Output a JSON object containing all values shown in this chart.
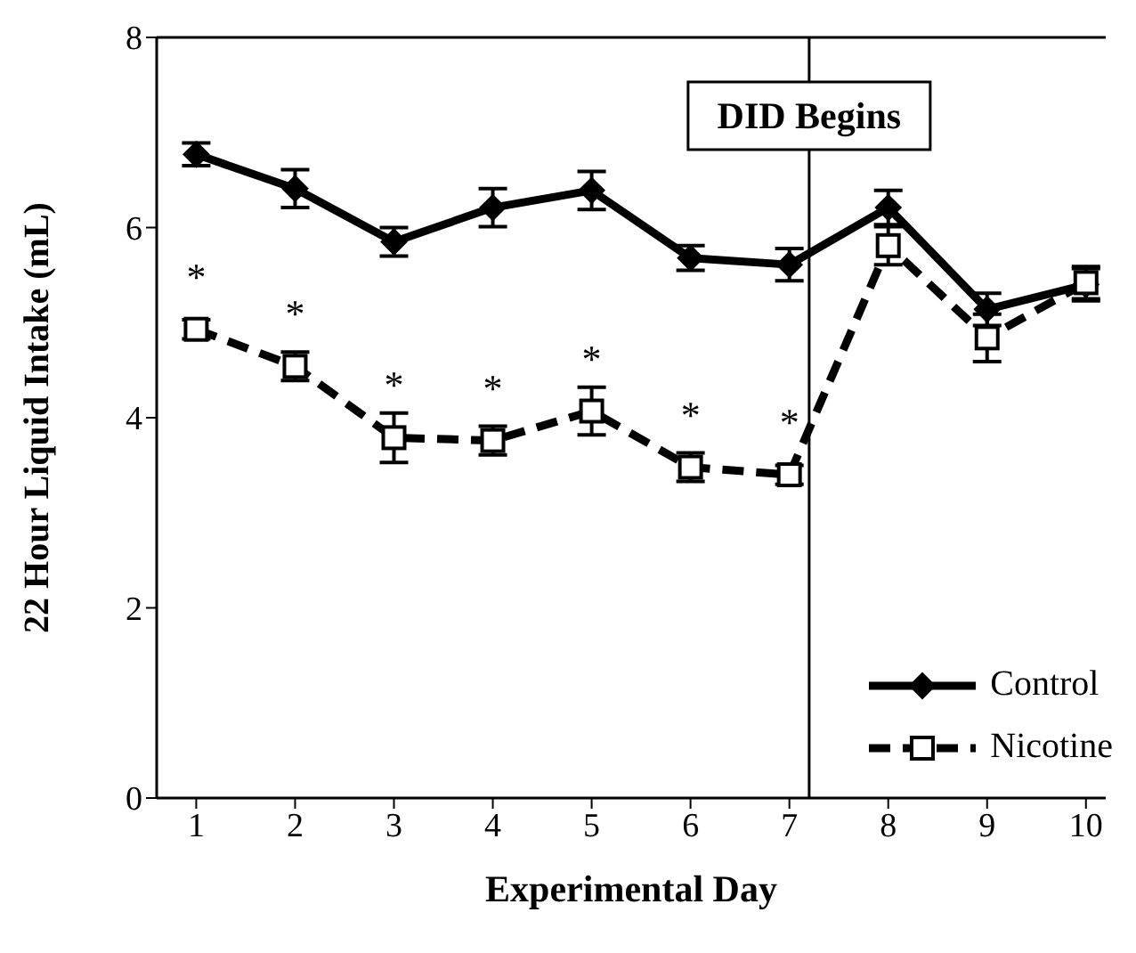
{
  "chart_data": {
    "type": "line",
    "xlabel": "Experimental Day",
    "ylabel": "22 Hour Liquid Intake (mL)",
    "x": [
      1,
      2,
      3,
      4,
      5,
      6,
      7,
      8,
      9,
      10
    ],
    "xlim": [
      0.6,
      10.2
    ],
    "xticks": [
      1,
      2,
      3,
      4,
      5,
      6,
      7,
      8,
      9,
      10
    ],
    "ylim": [
      0,
      8
    ],
    "yticks": [
      0,
      2,
      4,
      6,
      8
    ],
    "grid": false,
    "legend": "bottom right",
    "series": [
      {
        "name": "Control",
        "color": "#000000",
        "marker": "diamond",
        "line_style": "solid",
        "values": [
          6.77,
          6.41,
          5.85,
          6.21,
          6.39,
          5.68,
          5.61,
          6.21,
          5.14,
          5.4
        ],
        "errors": [
          0.12,
          0.2,
          0.15,
          0.2,
          0.2,
          0.13,
          0.17,
          0.18,
          0.17,
          0.17
        ]
      },
      {
        "name": "Nicotine",
        "color": "#000000",
        "marker": "square",
        "line_style": "dashed",
        "values": [
          4.93,
          4.54,
          3.79,
          3.76,
          4.07,
          3.48,
          3.4,
          5.81,
          4.84,
          5.42
        ],
        "errors": [
          0.1,
          0.15,
          0.26,
          0.15,
          0.25,
          0.15,
          0.1,
          0.2,
          0.25,
          0.17
        ]
      }
    ],
    "ref_lines": [
      {
        "axis": "x",
        "value": 7.2,
        "label": "DID Begins",
        "color": "#000000"
      }
    ],
    "annotations": [
      "*",
      "*",
      "*",
      "*",
      "*",
      "*",
      "*"
    ]
  }
}
